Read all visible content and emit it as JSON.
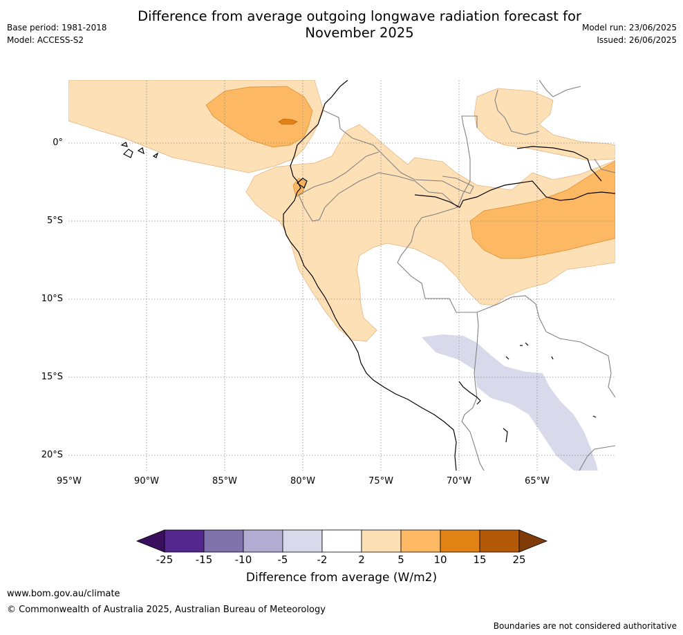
{
  "header": {
    "title_line1": "Difference from average outgoing longwave radiation forecast for",
    "title_line2": "November 2025",
    "base_period": "Base period: 1981-2018",
    "model": "Model: ACCESS-S2",
    "model_run": "Model run: 23/06/2025",
    "issued": "Issued: 26/06/2025"
  },
  "map": {
    "lat_labels": [
      "0°",
      "5°S",
      "10°S",
      "15°S",
      "20°S"
    ],
    "lon_labels": [
      "95°W",
      "90°W",
      "85°W",
      "80°W",
      "75°W",
      "70°W",
      "65°W"
    ]
  },
  "legend": {
    "ticks": [
      "-25",
      "-15",
      "-10",
      "-5",
      "-2",
      "2",
      "5",
      "10",
      "15",
      "25"
    ],
    "colors": [
      "#3a0f5e",
      "#54278f",
      "#8073ac",
      "#b2abd2",
      "#d8daeb",
      "#ffffff",
      "#fee0b6",
      "#fdb863",
      "#e08214",
      "#b35806",
      "#7f3b08"
    ],
    "title": "Difference from average (W/m2)"
  },
  "footer": {
    "url": "www.bom.gov.au/climate",
    "copyright": "© Commonwealth of Australia 2025, Australian Bureau of Meteorology",
    "disclaimer": "Boundaries are not considered authoritative"
  }
}
